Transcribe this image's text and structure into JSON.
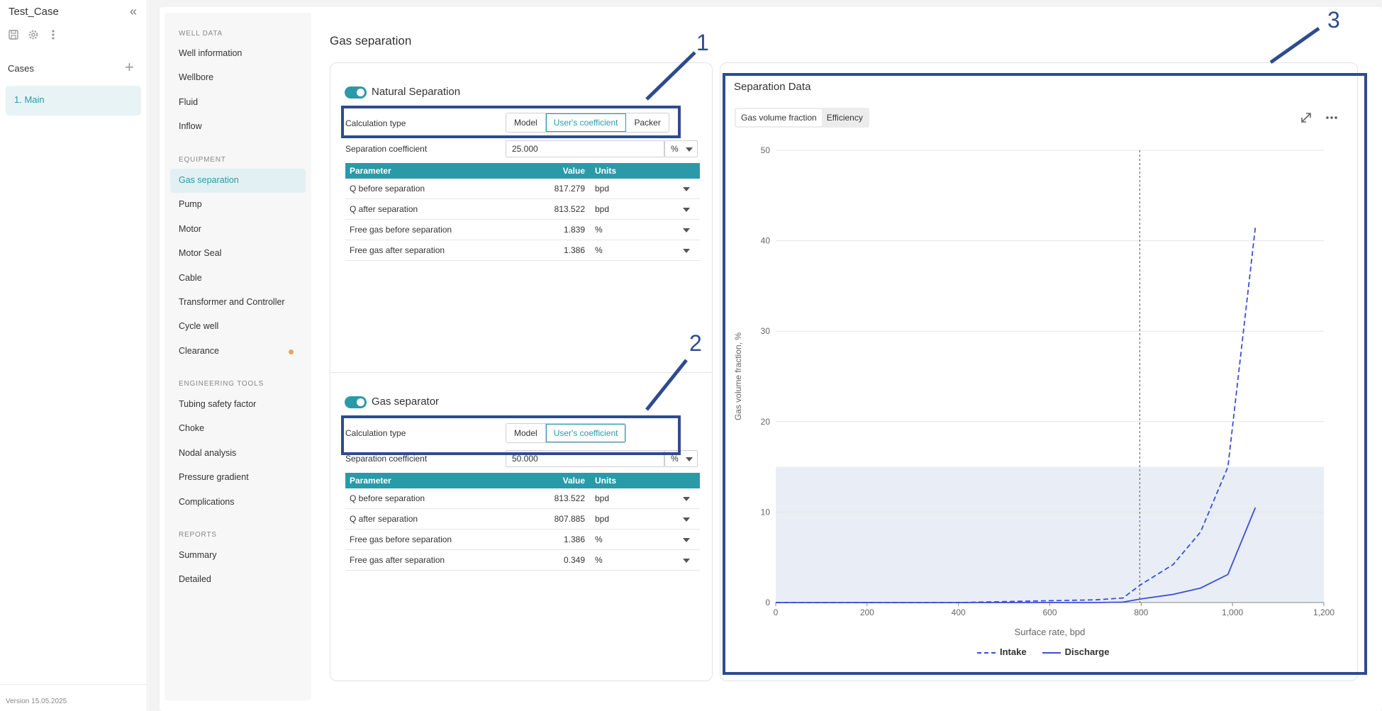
{
  "app": {
    "title": "Test_Case",
    "collapse_icon": "double-chevron-left-icon",
    "cases_label": "Cases",
    "cases": [
      "1. Main"
    ],
    "version": "Version 15.05.2025"
  },
  "nav": {
    "sections": [
      {
        "label": "WELL DATA",
        "items": [
          "Well information",
          "Wellbore",
          "Fluid",
          "Inflow"
        ]
      },
      {
        "label": "EQUIPMENT",
        "items": [
          "Gas separation",
          "Pump",
          "Motor",
          "Motor Seal",
          "Cable",
          "Transformer and Controller",
          "Cycle well",
          "Clearance"
        ]
      },
      {
        "label": "ENGINEERING TOOLS",
        "items": [
          "Tubing safety factor",
          "Choke",
          "Nodal analysis",
          "Pressure gradient",
          "Complications"
        ]
      },
      {
        "label": "REPORTS",
        "items": [
          "Summary",
          "Detailed"
        ]
      }
    ],
    "active": "Gas separation"
  },
  "page": {
    "title": "Gas separation"
  },
  "natural": {
    "title": "Natural Separation",
    "calc_label": "Calculation type",
    "options": [
      "Model",
      "User's coefficient",
      "Packer"
    ],
    "selected": "User's coefficient",
    "coef_label": "Separation coefficient",
    "coef_value": "25.000",
    "coef_unit": "%",
    "headers": [
      "Parameter",
      "Value",
      "Units"
    ],
    "rows": [
      [
        "Q before separation",
        "817.279",
        "bpd"
      ],
      [
        "Q after separation",
        "813.522",
        "bpd"
      ],
      [
        "Free gas before separation",
        "1.839",
        "%"
      ],
      [
        "Free gas after separation",
        "1.386",
        "%"
      ]
    ]
  },
  "separator": {
    "title": "Gas separator",
    "calc_label": "Calculation type",
    "options": [
      "Model",
      "User's coefficient"
    ],
    "selected": "User's coefficient",
    "coef_label": "Separation coefficient",
    "coef_value": "50.000",
    "coef_unit": "%",
    "headers": [
      "Parameter",
      "Value",
      "Units"
    ],
    "rows": [
      [
        "Q before separation",
        "813.522",
        "bpd"
      ],
      [
        "Q after separation",
        "807.885",
        "bpd"
      ],
      [
        "Free gas before separation",
        "1.386",
        "%"
      ],
      [
        "Free gas after separation",
        "0.349",
        "%"
      ]
    ]
  },
  "chart_panel": {
    "title": "Separation Data",
    "tabs": [
      "Gas volume fraction",
      "Efficiency"
    ],
    "selected_tab": "Gas volume fraction"
  },
  "annotations": [
    "1",
    "2",
    "3"
  ],
  "colors": {
    "accent": "#2a9aa8",
    "series": "#3a4fd6",
    "band": "#e9edf6",
    "annotation": "#2e4b8f"
  },
  "chart_data": {
    "type": "line",
    "xlabel": "Surface rate, bpd",
    "ylabel": "Gas volume fraction, %",
    "xlim": [
      0,
      1200
    ],
    "ylim": [
      0,
      50
    ],
    "xticks": [
      0,
      200,
      400,
      600,
      800,
      1000,
      1200
    ],
    "xtick_labels": [
      "0",
      "200",
      "400",
      "600",
      "800",
      "1,000",
      "1,200"
    ],
    "yticks": [
      0,
      10,
      20,
      30,
      40,
      50
    ],
    "grid": true,
    "legend": "bottom",
    "vline_x": 797,
    "band": {
      "y0": 0,
      "y1": 15,
      "x0": 0,
      "x1": 1200
    },
    "series": [
      {
        "name": "Intake",
        "style": "dashed",
        "x": [
          0,
          100,
          200,
          300,
          400,
          500,
          600,
          700,
          760,
          800,
          870,
          930,
          990,
          1050
        ],
        "y": [
          0,
          0,
          0,
          0,
          0,
          0.1,
          0.2,
          0.3,
          0.5,
          2.0,
          4.2,
          7.8,
          15.0,
          41.5
        ]
      },
      {
        "name": "Discharge",
        "style": "solid",
        "x": [
          0,
          100,
          200,
          300,
          400,
          500,
          600,
          700,
          760,
          800,
          870,
          930,
          990,
          1050
        ],
        "y": [
          0,
          0,
          0,
          0,
          0,
          0,
          0,
          0,
          0.05,
          0.4,
          0.9,
          1.6,
          3.1,
          10.5
        ]
      }
    ]
  }
}
